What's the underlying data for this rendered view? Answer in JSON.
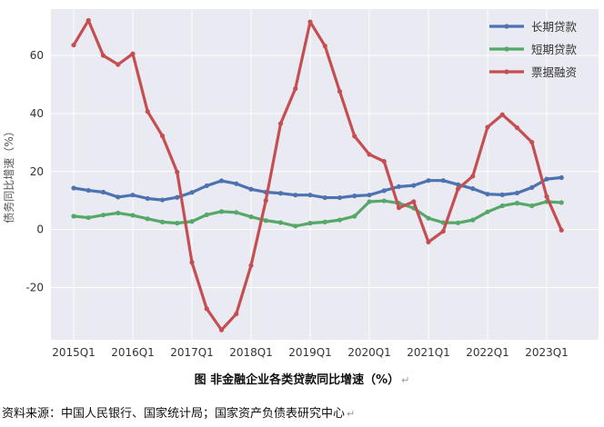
{
  "chart_data": {
    "type": "line",
    "title": "",
    "xlabel": "",
    "ylabel": "债务同比增速（%）",
    "x_ticks": [
      "2015Q1",
      "2016Q1",
      "2017Q1",
      "2018Q1",
      "2019Q1",
      "2020Q1",
      "2021Q1",
      "2022Q1",
      "2023Q1"
    ],
    "y_ticks": [
      -20,
      0,
      20,
      40,
      60
    ],
    "ylim": [
      -38,
      76
    ],
    "grid": true,
    "legend_position": "top-right",
    "x": [
      "2015Q1",
      "2015Q2",
      "2015Q3",
      "2015Q4",
      "2016Q1",
      "2016Q2",
      "2016Q3",
      "2016Q4",
      "2017Q1",
      "2017Q2",
      "2017Q3",
      "2017Q4",
      "2018Q1",
      "2018Q2",
      "2018Q3",
      "2018Q4",
      "2019Q1",
      "2019Q2",
      "2019Q3",
      "2019Q4",
      "2020Q1",
      "2020Q2",
      "2020Q3",
      "2020Q4",
      "2021Q1",
      "2021Q2",
      "2021Q3",
      "2021Q4",
      "2022Q1",
      "2022Q2",
      "2022Q3",
      "2022Q4",
      "2023Q1",
      "2023Q2"
    ],
    "series": [
      {
        "name": "长期贷款",
        "color": "#4c72b0",
        "values": [
          14.3,
          13.5,
          12.9,
          11.2,
          11.9,
          10.7,
          10.2,
          11.1,
          12.8,
          15.1,
          16.8,
          15.8,
          13.9,
          12.9,
          12.5,
          11.9,
          11.9,
          11.0,
          11.0,
          11.6,
          11.9,
          13.4,
          14.8,
          15.2,
          16.9,
          16.9,
          15.5,
          14.1,
          12.2,
          12.0,
          12.6,
          14.5,
          17.4,
          17.9
        ]
      },
      {
        "name": "短期贷款",
        "color": "#55a868",
        "values": [
          4.6,
          4.1,
          5.0,
          5.7,
          4.9,
          3.7,
          2.6,
          2.2,
          2.8,
          5.1,
          6.2,
          5.9,
          4.4,
          3.1,
          2.4,
          1.2,
          2.2,
          2.6,
          3.3,
          4.6,
          9.6,
          9.9,
          9.1,
          7.4,
          3.9,
          2.4,
          2.3,
          3.3,
          6.1,
          8.2,
          9.1,
          8.2,
          9.6,
          9.3
        ]
      },
      {
        "name": "票据融资",
        "color": "#c44e52",
        "values": [
          63.6,
          72.1,
          60.0,
          56.9,
          60.6,
          40.7,
          32.3,
          19.8,
          -11.3,
          -27.3,
          -34.6,
          -29.1,
          -12.4,
          10.0,
          36.5,
          48.6,
          71.6,
          63.3,
          47.6,
          32.2,
          25.9,
          23.5,
          7.5,
          9.6,
          -4.3,
          -0.6,
          14.0,
          18.4,
          35.3,
          39.6,
          35.1,
          30.1,
          11.4,
          -0.2
        ]
      }
    ]
  },
  "caption": {
    "text": "图  非金融企业各类贷款同比增速（%）",
    "return_mark": "↵"
  },
  "source": {
    "text": "资料来源：中国人民银行、国家统计局；国家资产负债表研究中心",
    "return_mark": "↵"
  },
  "style": {
    "plot_background": "#eaeaf2",
    "grid_color": "#ffffff"
  }
}
